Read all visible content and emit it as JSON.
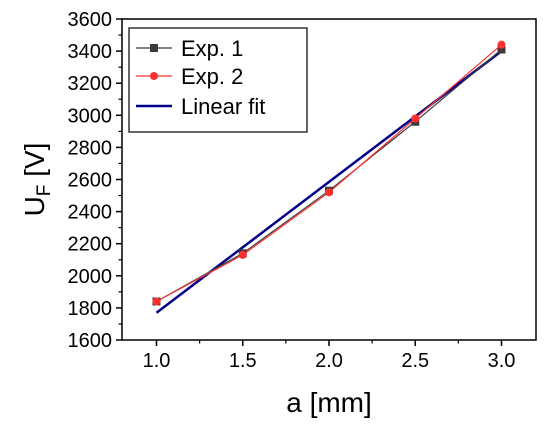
{
  "chart_data": {
    "type": "line",
    "xlabel": "a [mm]",
    "ylabel_main": "U",
    "ylabel_sub": "F",
    "ylabel_unit": " [V]",
    "xlim": [
      0.8,
      3.2
    ],
    "ylim": [
      1600,
      3600
    ],
    "x_ticks": [
      1.0,
      1.5,
      2.0,
      2.5,
      3.0
    ],
    "x_tick_labels": [
      "1.0",
      "1.5",
      "2.0",
      "2.5",
      "3.0"
    ],
    "y_ticks": [
      1600,
      1800,
      2000,
      2200,
      2400,
      2600,
      2800,
      3000,
      3200,
      3400,
      3600
    ],
    "y_tick_labels": [
      "1600",
      "1800",
      "2000",
      "2200",
      "2400",
      "2600",
      "2800",
      "3000",
      "3200",
      "3400",
      "3600"
    ],
    "grid": false,
    "legend_position": "top-left",
    "series": [
      {
        "name": "Exp. 1",
        "marker": "square",
        "color": "#3a3a3a",
        "x": [
          1.0,
          1.5,
          2.0,
          2.5,
          3.0
        ],
        "y": [
          1840,
          2140,
          2530,
          2960,
          3410
        ]
      },
      {
        "name": "Exp. 2",
        "marker": "circle",
        "color": "#ff3030",
        "x": [
          1.0,
          1.5,
          2.0,
          2.5,
          3.0
        ],
        "y": [
          1840,
          2130,
          2520,
          2980,
          3440
        ]
      },
      {
        "name": "Linear fit",
        "marker": "none",
        "color": "#00008b",
        "x": [
          1.0,
          3.0
        ],
        "y": [
          1770,
          3400
        ]
      }
    ]
  }
}
